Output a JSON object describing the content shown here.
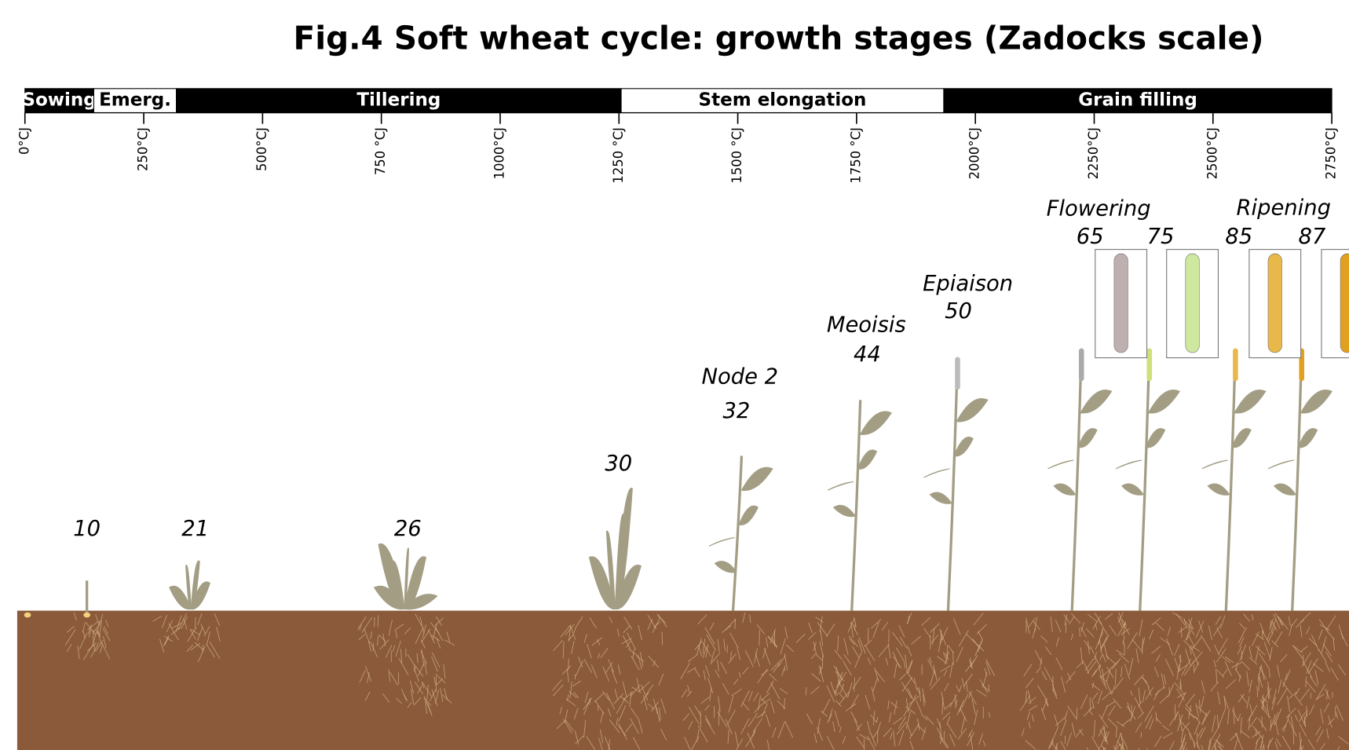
{
  "title": "Fig.4 Soft wheat cycle: growth stages (Zadocks scale)",
  "phases": [
    "Sowing",
    "Emerg.",
    "Tillering",
    "Stem elongation",
    "Grain filling"
  ],
  "scale_labels": [
    "0°CJ",
    "250°CJ",
    "500°CJ",
    "750 °CJ",
    "1000°CJ",
    "1250 °CJ",
    "1500 °CJ",
    "1750 °CJ",
    "2000°CJ",
    "2250°CJ",
    "2500°CJ",
    "2750°CJ"
  ],
  "stages": [
    {
      "code": 10
    },
    {
      "code": 21
    },
    {
      "code": 26
    },
    {
      "code": 30
    },
    {
      "name": "Node 2",
      "code": 32
    },
    {
      "name": "Meoisis",
      "code": 44
    },
    {
      "name": "Epiaison",
      "code": 50
    }
  ],
  "groups": [
    {
      "name": "Flowering",
      "codes": [
        65,
        75
      ]
    },
    {
      "name": "Ripening",
      "codes": [
        85,
        87
      ]
    }
  ]
}
